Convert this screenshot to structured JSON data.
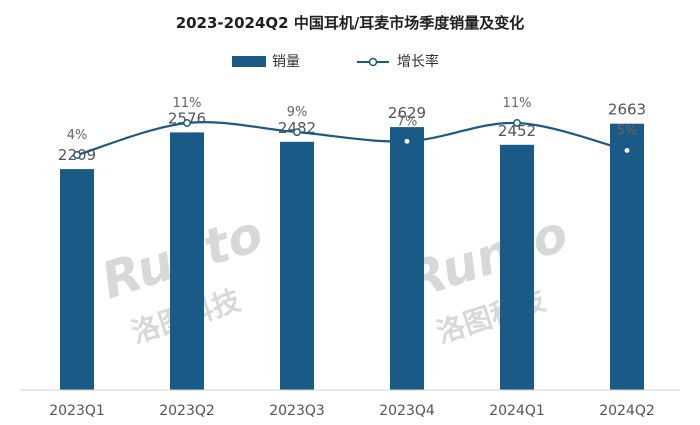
{
  "chart_data": {
    "type": "bar",
    "title": "2023-2024Q2 中国耳机/耳麦市场季度销量及变化",
    "categories": [
      "2023Q1",
      "2023Q2",
      "2023Q3",
      "2023Q4",
      "2024Q1",
      "2024Q2"
    ],
    "series": [
      {
        "name": "销量",
        "type": "bar",
        "values": [
          2209,
          2576,
          2482,
          2629,
          2452,
          2663
        ],
        "labels": [
          "2209",
          "2576",
          "2482",
          "2629",
          "2452",
          "2663"
        ],
        "color": "#1a5a86"
      },
      {
        "name": "增长率",
        "type": "line",
        "values": [
          4,
          11,
          9,
          7,
          11,
          5
        ],
        "labels": [
          "4%",
          "11%",
          "9%",
          "7%",
          "11%",
          "5%"
        ],
        "color": "#1a5a86"
      }
    ],
    "ylim": [
      0,
      3000
    ],
    "y2lim": [
      0,
      30
    ],
    "grid": false,
    "legend": "top-center"
  },
  "watermark": {
    "text_en": "Runto",
    "text_cn": "洛图科技"
  }
}
